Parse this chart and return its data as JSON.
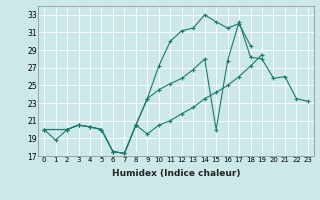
{
  "xlabel": "Humidex (Indice chaleur)",
  "background_color": "#cce8e8",
  "grid_color": "#ffffff",
  "line_color": "#1a7a6e",
  "xlim": [
    -0.5,
    23.5
  ],
  "ylim": [
    17,
    34
  ],
  "yticks": [
    17,
    19,
    21,
    23,
    25,
    27,
    29,
    31,
    33
  ],
  "xticks": [
    0,
    1,
    2,
    3,
    4,
    5,
    6,
    7,
    8,
    9,
    10,
    11,
    12,
    13,
    14,
    15,
    16,
    17,
    18,
    19,
    20,
    21,
    22,
    23
  ],
  "line1_x": [
    0,
    1,
    2,
    3,
    4,
    5,
    6,
    7,
    8,
    9,
    10,
    11,
    12,
    13,
    14,
    15,
    16,
    17,
    18,
    19,
    20,
    21,
    22,
    23
  ],
  "line1_y": [
    20.0,
    18.8,
    20.0,
    20.5,
    20.3,
    20.0,
    17.5,
    17.3,
    20.5,
    23.5,
    27.2,
    30.0,
    31.2,
    31.5,
    33.0,
    32.2,
    31.5,
    32.0,
    29.5,
    null,
    null,
    null,
    null,
    null
  ],
  "line2_x": [
    0,
    2,
    3,
    4,
    5,
    6,
    7,
    8,
    9,
    10,
    11,
    12,
    13,
    14,
    15,
    16,
    17,
    18,
    19,
    20,
    21,
    22,
    23
  ],
  "line2_y": [
    20.0,
    20.0,
    20.5,
    20.3,
    20.0,
    17.5,
    17.3,
    20.5,
    23.5,
    24.5,
    25.2,
    25.8,
    26.8,
    28.0,
    20.0,
    27.8,
    32.2,
    28.2,
    28.0,
    25.8,
    26.0,
    23.5,
    23.2
  ],
  "line3_x": [
    0,
    2,
    3,
    4,
    5,
    6,
    7,
    8,
    9,
    10,
    11,
    12,
    13,
    14,
    15,
    16,
    17,
    18,
    19,
    20,
    21,
    22,
    23
  ],
  "line3_y": [
    20.0,
    20.0,
    20.5,
    20.3,
    20.0,
    17.5,
    17.3,
    20.5,
    19.5,
    20.5,
    21.0,
    21.8,
    22.5,
    23.5,
    24.2,
    25.0,
    26.0,
    27.2,
    28.5,
    null,
    null,
    null,
    null
  ],
  "marker": "+",
  "markersize": 3,
  "linewidth": 0.8
}
